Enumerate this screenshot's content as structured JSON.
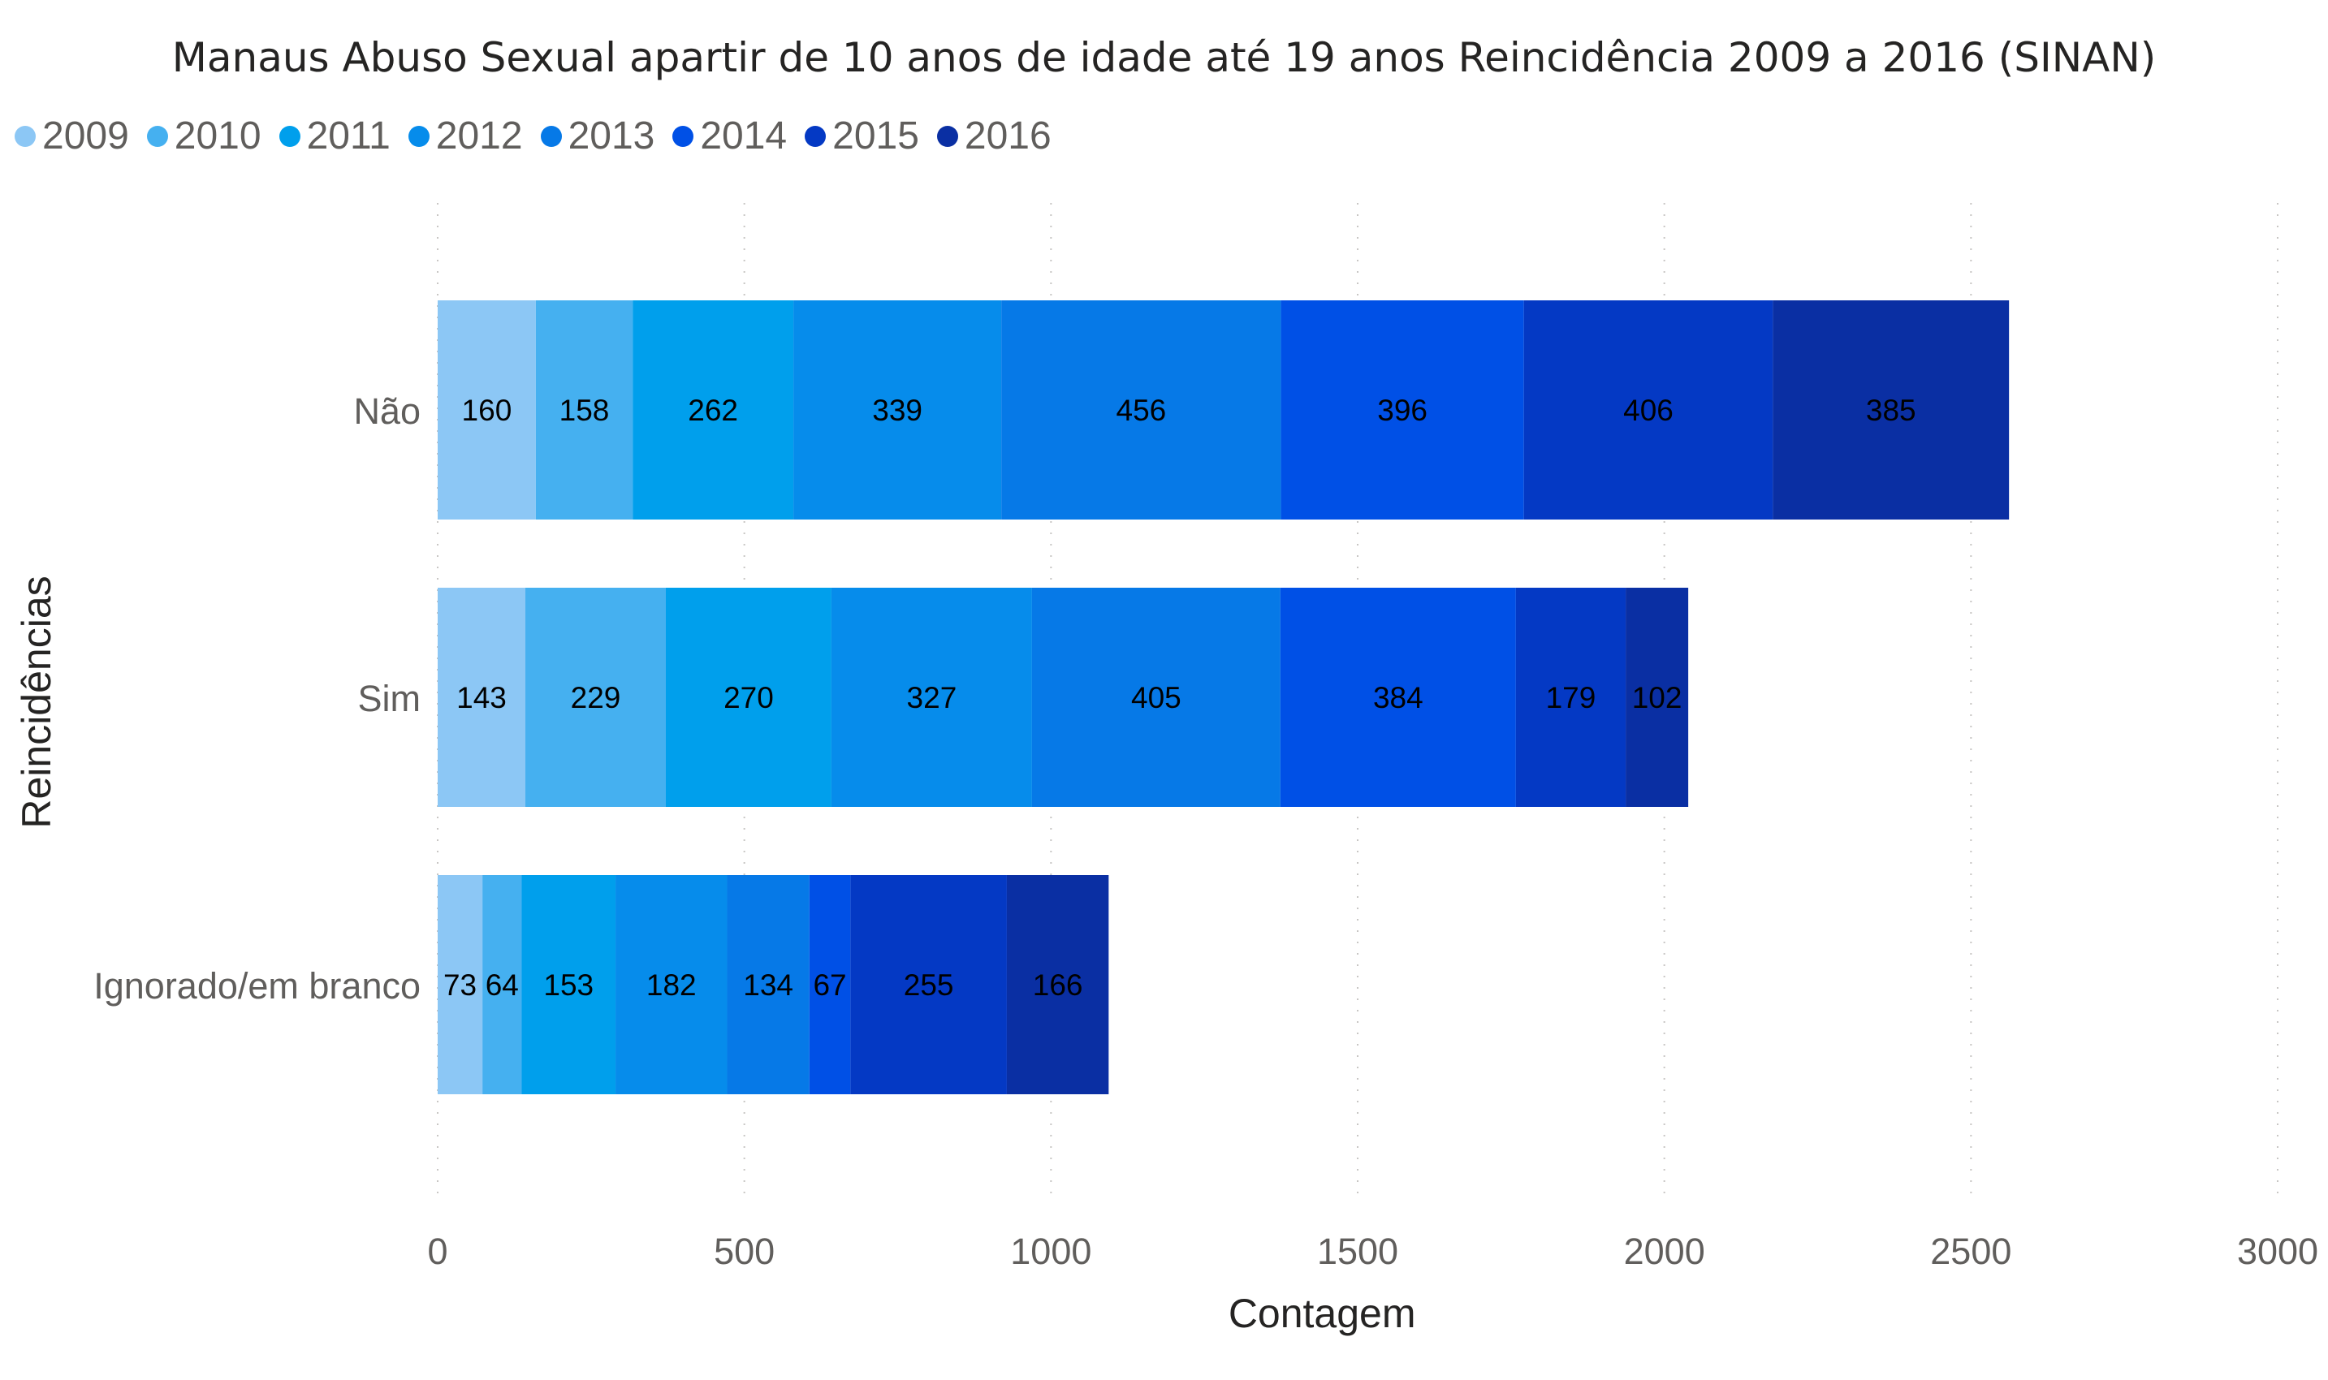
{
  "chart_data": {
    "type": "bar",
    "orientation": "horizontal",
    "stacked": true,
    "title": "Manaus Abuso Sexual apartir de 10 anos de idade até 19 anos Reincidência 2009 a 2016 (SINAN)",
    "xlabel": "Contagem",
    "ylabel": "Reincidências",
    "xlim": [
      0,
      3000
    ],
    "xticks": [
      0,
      500,
      1000,
      1500,
      2000,
      2500,
      3000
    ],
    "grid": "vertical dotted",
    "legend_position": "top-left",
    "categories": [
      "Não",
      "Sim",
      "Ignorado/em branco"
    ],
    "series": [
      {
        "name": "2009",
        "color": "#8cc7f5",
        "values": [
          160,
          143,
          73
        ]
      },
      {
        "name": "2010",
        "color": "#45b0f0",
        "values": [
          158,
          229,
          64
        ]
      },
      {
        "name": "2011",
        "color": "#009fec",
        "values": [
          262,
          270,
          153
        ]
      },
      {
        "name": "2012",
        "color": "#068ceb",
        "values": [
          339,
          327,
          182
        ]
      },
      {
        "name": "2013",
        "color": "#0679e7",
        "values": [
          456,
          405,
          134
        ]
      },
      {
        "name": "2014",
        "color": "#0050e6",
        "values": [
          396,
          384,
          67
        ]
      },
      {
        "name": "2015",
        "color": "#0439c4",
        "values": [
          406,
          179,
          255
        ]
      },
      {
        "name": "2016",
        "color": "#0a2fa3",
        "values": [
          385,
          102,
          166
        ]
      }
    ]
  }
}
